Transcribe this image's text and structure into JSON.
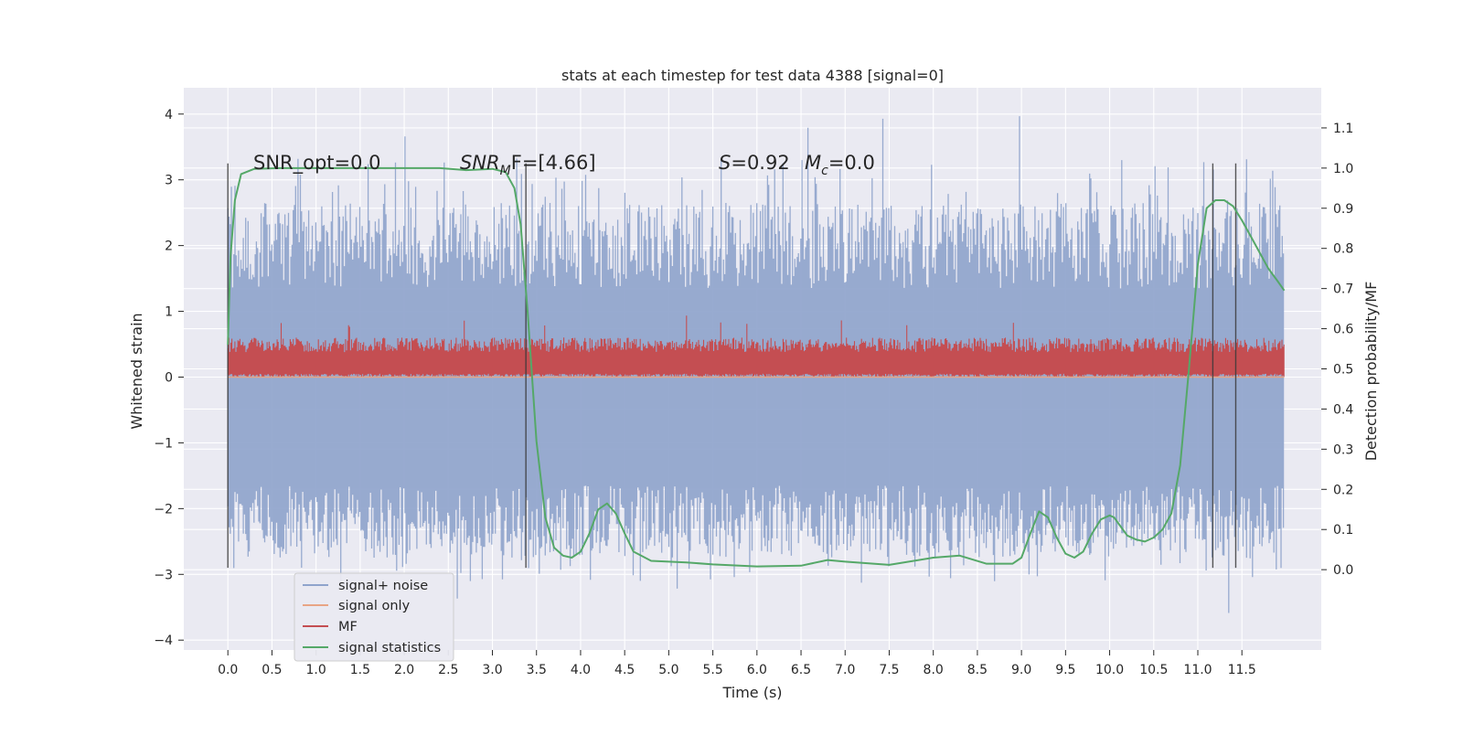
{
  "chart_data": {
    "type": "line",
    "title": "stats at each timestep for test data 4388 [signal=0]",
    "xlabel": "Time (s)",
    "ylabel_left": "Whitened strain",
    "ylabel_right": "Detection probability/MF",
    "xlim": [
      -0.5,
      12.4
    ],
    "ylim_left": [
      -4.15,
      4.4
    ],
    "ylim_right": [
      -0.2,
      1.2
    ],
    "x_ticks": [
      0.0,
      0.5,
      1.0,
      1.5,
      2.0,
      2.5,
      3.0,
      3.5,
      4.0,
      4.5,
      5.0,
      5.5,
      6.0,
      6.5,
      7.0,
      7.5,
      8.0,
      8.5,
      9.0,
      9.5,
      10.0,
      10.5,
      11.0,
      11.5
    ],
    "x_tick_labels": [
      "0.0",
      "0.5",
      "1.0",
      "1.5",
      "2.0",
      "2.5",
      "3.0",
      "3.5",
      "4.0",
      "4.5",
      "5.0",
      "5.5",
      "6.0",
      "6.5",
      "7.0",
      "7.5",
      "8.0",
      "8.5",
      "9.0",
      "9.5",
      "10.0",
      "10.5",
      "11.0",
      "11.5"
    ],
    "y_ticks_left": [
      -4,
      -3,
      -2,
      -1,
      0,
      1,
      2,
      3,
      4
    ],
    "y_tick_labels_left": [
      "−4",
      "−3",
      "−2",
      "−1",
      "0",
      "1",
      "2",
      "3",
      "4"
    ],
    "y_ticks_right": [
      0.0,
      0.1,
      0.2,
      0.3,
      0.4,
      0.5,
      0.6,
      0.7,
      0.8,
      0.9,
      1.0,
      1.1
    ],
    "y_tick_labels_right": [
      "0.0",
      "0.1",
      "0.2",
      "0.3",
      "0.4",
      "0.5",
      "0.6",
      "0.7",
      "0.8",
      "0.9",
      "1.0",
      "1.1"
    ],
    "grid": true,
    "legend_position": "lower-left",
    "annotations": {
      "snr_opt": "SNR_opt=0.0",
      "snr_mf_main": "SNR",
      "snr_mf_sub": "M",
      "snr_mf_rest": "F=[4.66]",
      "s_main": "S",
      "s_rest": "=0.92",
      "mc_main": "M",
      "mc_sub": "c",
      "mc_rest": "=0.0"
    },
    "vertical_markers_x": [
      0.0,
      3.38,
      11.17,
      11.43
    ],
    "vertical_markers_ylim": [
      -2.9,
      3.25
    ],
    "series": [
      {
        "name": "signal+ noise",
        "color": "#8fa4cc",
        "axis": "left",
        "x_range": [
          0.0,
          11.98
        ],
        "core_band": [
          -1.65,
          1.35
        ],
        "spike_range": [
          -3.7,
          4.1
        ]
      },
      {
        "name": "signal only",
        "color": "#e8a585",
        "axis": "left",
        "x": [
          0.0,
          11.98
        ],
        "y": [
          0.0,
          0.0
        ]
      },
      {
        "name": "MF",
        "color": "#c44e52",
        "axis": "left",
        "x_range": [
          0.0,
          11.98
        ],
        "band": [
          0.05,
          0.6
        ],
        "max": 1.0
      },
      {
        "name": "signal statistics",
        "color": "#55a868",
        "axis": "right",
        "x": [
          0.0,
          0.03,
          0.08,
          0.15,
          0.3,
          0.6,
          1.0,
          2.0,
          2.4,
          2.7,
          3.0,
          3.15,
          3.25,
          3.32,
          3.4,
          3.5,
          3.6,
          3.7,
          3.8,
          3.9,
          4.0,
          4.1,
          4.2,
          4.3,
          4.4,
          4.5,
          4.6,
          4.8,
          5.0,
          5.2,
          5.5,
          6.0,
          6.5,
          6.8,
          7.0,
          7.5,
          8.0,
          8.3,
          8.6,
          8.9,
          9.0,
          9.1,
          9.2,
          9.3,
          9.4,
          9.5,
          9.6,
          9.7,
          9.8,
          9.9,
          10.0,
          10.05,
          10.1,
          10.2,
          10.3,
          10.4,
          10.5,
          10.6,
          10.7,
          10.8,
          10.9,
          11.0,
          11.1,
          11.2,
          11.3,
          11.4,
          11.5,
          11.6,
          11.7,
          11.8,
          11.9,
          11.98
        ],
        "y": [
          0.56,
          0.78,
          0.92,
          0.985,
          0.998,
          1.0,
          1.0,
          1.0,
          1.0,
          0.995,
          0.998,
          0.99,
          0.95,
          0.86,
          0.64,
          0.32,
          0.13,
          0.055,
          0.035,
          0.03,
          0.045,
          0.09,
          0.15,
          0.165,
          0.14,
          0.09,
          0.045,
          0.022,
          0.02,
          0.018,
          0.013,
          0.008,
          0.01,
          0.024,
          0.02,
          0.012,
          0.03,
          0.035,
          0.015,
          0.015,
          0.03,
          0.09,
          0.145,
          0.13,
          0.08,
          0.04,
          0.03,
          0.045,
          0.09,
          0.125,
          0.135,
          0.13,
          0.115,
          0.085,
          0.075,
          0.07,
          0.08,
          0.1,
          0.14,
          0.26,
          0.5,
          0.76,
          0.9,
          0.92,
          0.92,
          0.905,
          0.87,
          0.83,
          0.79,
          0.75,
          0.72,
          0.695
        ]
      }
    ]
  }
}
